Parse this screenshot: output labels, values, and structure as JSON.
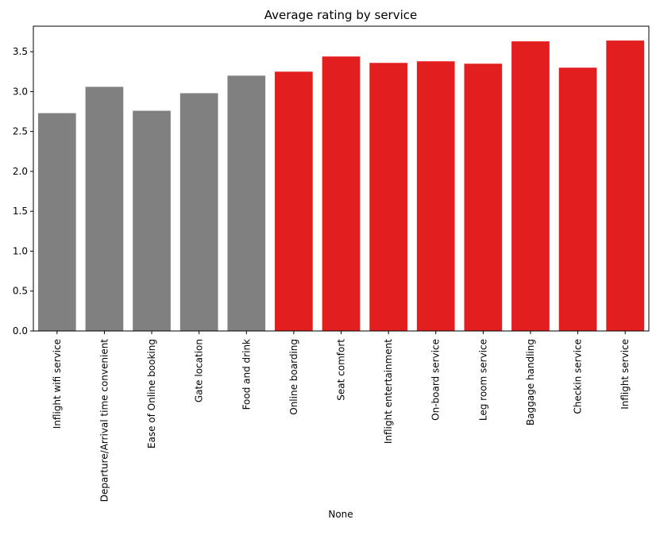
{
  "chart_data": {
    "type": "bar",
    "title": "Average rating by service",
    "xlabel": "None",
    "ylabel": "",
    "ylim": [
      0,
      3.82
    ],
    "yticks": [
      "0.0",
      "0.5",
      "1.0",
      "1.5",
      "2.0",
      "2.5",
      "3.0",
      "3.5"
    ],
    "categories": [
      "Inflight wifi service",
      "Departure/Arrival time convenient",
      "Ease of Online booking",
      "Gate location",
      "Food and drink",
      "Online boarding",
      "Seat comfort",
      "Inflight entertainment",
      "On-board service",
      "Leg room service",
      "Baggage handling",
      "Checkin service",
      "Inflight service"
    ],
    "values": [
      2.73,
      3.06,
      2.76,
      2.98,
      3.2,
      3.25,
      3.44,
      3.36,
      3.38,
      3.35,
      3.63,
      3.3,
      3.64
    ],
    "bar_colors": [
      "#808080",
      "#808080",
      "#808080",
      "#808080",
      "#808080",
      "#e31e1f",
      "#e31e1f",
      "#e31e1f",
      "#e31e1f",
      "#e31e1f",
      "#e31e1f",
      "#e31e1f",
      "#e31e1f"
    ],
    "grid": false,
    "legend": "none"
  }
}
